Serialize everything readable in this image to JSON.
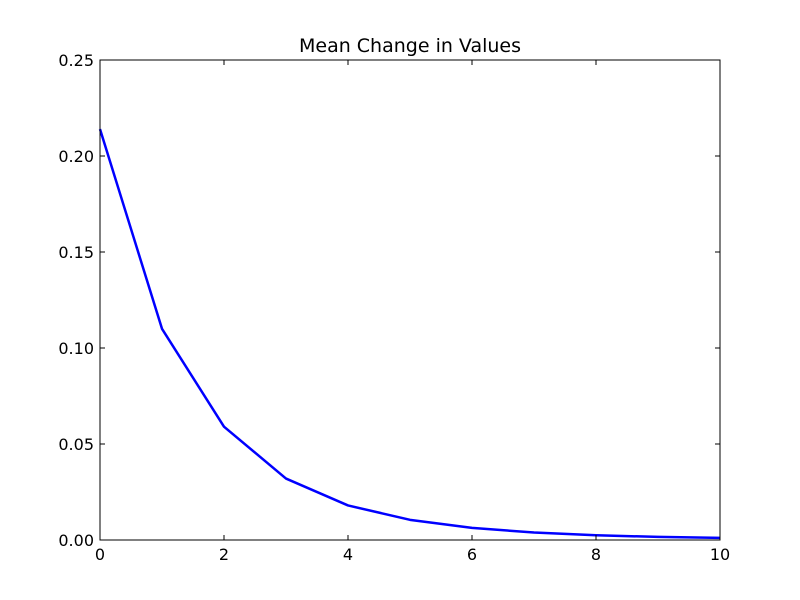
{
  "chart_data": {
    "type": "line",
    "title": "Mean Change in Values",
    "xlabel": "",
    "ylabel": "",
    "xlim": [
      0,
      10
    ],
    "ylim": [
      0,
      0.25
    ],
    "x_ticks": [
      0,
      2,
      4,
      6,
      8,
      10
    ],
    "x_tick_labels": [
      "0",
      "2",
      "4",
      "6",
      "8",
      "10"
    ],
    "y_ticks": [
      0.0,
      0.05,
      0.1,
      0.15,
      0.2,
      0.25
    ],
    "y_tick_labels": [
      "0.00",
      "0.05",
      "0.10",
      "0.15",
      "0.20",
      "0.25"
    ],
    "grid": false,
    "legend": "none",
    "series": [
      {
        "color": "#0000ff",
        "x": [
          0,
          1,
          2,
          3,
          4,
          5,
          6,
          7,
          8,
          9,
          10
        ],
        "y": [
          0.214,
          0.11,
          0.059,
          0.032,
          0.018,
          0.0105,
          0.0063,
          0.0039,
          0.0025,
          0.0016,
          0.0011
        ]
      }
    ]
  }
}
